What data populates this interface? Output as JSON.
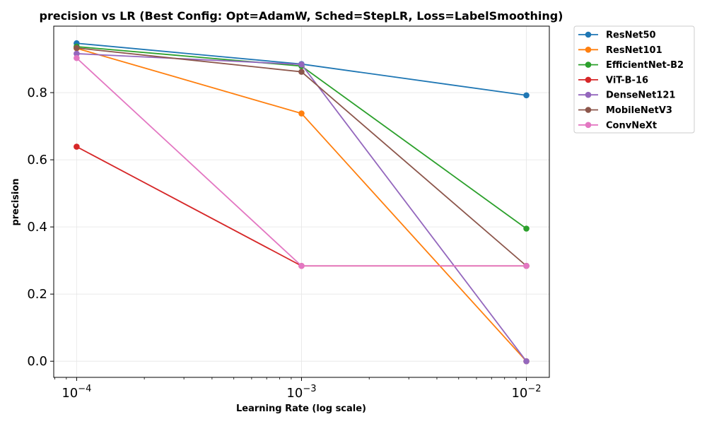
{
  "chart_data": {
    "type": "line",
    "title": "precision vs LR (Best Config: Opt=AdamW, Sched=StepLR, Loss=LabelSmoothing)",
    "xlabel": "Learning Rate (log scale)",
    "ylabel": "precision",
    "xscale": "log",
    "x": [
      0.0001,
      0.001,
      0.01
    ],
    "x_tick_labels": [
      {
        "base": "10",
        "exp": "−4"
      },
      {
        "base": "10",
        "exp": "−3"
      },
      {
        "base": "10",
        "exp": "−2"
      }
    ],
    "y_ticks": [
      0.0,
      0.2,
      0.4,
      0.6,
      0.8
    ],
    "y_tick_labels": [
      "0.0",
      "0.2",
      "0.4",
      "0.6",
      "0.8"
    ],
    "xlim": [
      7.91e-05,
      0.01265
    ],
    "ylim": [
      -0.048,
      0.998
    ],
    "grid": true,
    "legend_position": "outside-top-right",
    "series": [
      {
        "name": "ResNet50",
        "color": "#1f77b4",
        "values": [
          0.947,
          0.885,
          0.792
        ]
      },
      {
        "name": "ResNet101",
        "color": "#ff7f0e",
        "values": [
          0.932,
          0.738,
          0.0
        ]
      },
      {
        "name": "EfficientNet-B2",
        "color": "#2ca02c",
        "values": [
          0.937,
          0.879,
          0.395
        ]
      },
      {
        "name": "ViT-B-16",
        "color": "#d62728",
        "values": [
          0.639,
          0.284,
          0.284
        ]
      },
      {
        "name": "DenseNet121",
        "color": "#9467bd",
        "values": [
          0.916,
          0.884,
          0.0
        ]
      },
      {
        "name": "MobileNetV3",
        "color": "#8c564b",
        "values": [
          0.933,
          0.862,
          0.284
        ]
      },
      {
        "name": "ConvNeXt",
        "color": "#e377c2",
        "values": [
          0.903,
          0.284,
          0.284
        ]
      }
    ]
  }
}
